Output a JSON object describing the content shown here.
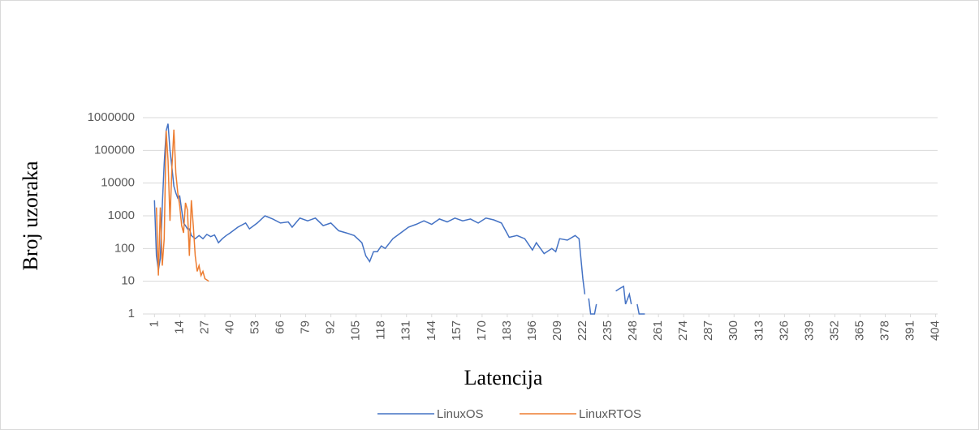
{
  "chart_data": {
    "type": "line",
    "y_label": "Broj uzoraka",
    "x_label": "Latencija",
    "log_y": true,
    "grid": true,
    "legend": "bottom",
    "xlim": [
      -5,
      405
    ],
    "ylim": [
      1,
      1000000
    ],
    "xticks": [
      1,
      14,
      27,
      40,
      53,
      66,
      79,
      92,
      105,
      118,
      131,
      144,
      157,
      170,
      183,
      196,
      209,
      222,
      235,
      248,
      261,
      274,
      287,
      300,
      313,
      326,
      339,
      352,
      365,
      378,
      391,
      404
    ],
    "yticks": [
      1,
      10,
      100,
      1000,
      10000,
      100000,
      1000000
    ],
    "series": [
      {
        "name": "LinuxOS",
        "color": "#4472c4",
        "x": [
          1,
          2,
          3,
          4,
          5,
          6,
          7,
          8,
          9,
          10,
          11,
          12,
          13,
          14,
          15,
          16,
          17,
          18,
          19,
          20,
          22,
          24,
          26,
          28,
          30,
          32,
          34,
          36,
          38,
          40,
          44,
          48,
          50,
          54,
          58,
          62,
          66,
          70,
          72,
          76,
          80,
          84,
          88,
          92,
          96,
          100,
          104,
          108,
          110,
          112,
          114,
          116,
          118,
          120,
          124,
          128,
          132,
          136,
          140,
          144,
          148,
          152,
          156,
          160,
          164,
          168,
          172,
          176,
          180,
          184,
          188,
          192,
          196,
          198,
          202,
          206,
          208,
          210,
          214,
          218,
          220,
          222,
          223,
          224,
          225,
          226,
          227,
          228,
          229,
          230,
          239,
          241,
          243,
          244,
          246,
          247,
          248,
          250,
          251,
          254
        ],
        "values": [
          3000,
          60,
          22,
          50,
          2000,
          40000,
          400000,
          650000,
          100000,
          30000,
          8000,
          5000,
          3500,
          4000,
          1500,
          600,
          500,
          400,
          400,
          250,
          200,
          250,
          200,
          270,
          230,
          260,
          150,
          200,
          250,
          300,
          450,
          600,
          400,
          600,
          1000,
          800,
          600,
          650,
          450,
          850,
          700,
          850,
          500,
          600,
          350,
          300,
          250,
          150,
          60,
          40,
          80,
          80,
          120,
          100,
          200,
          300,
          450,
          550,
          700,
          550,
          800,
          650,
          850,
          700,
          800,
          600,
          850,
          750,
          600,
          220,
          250,
          200,
          90,
          150,
          70,
          100,
          80,
          200,
          180,
          250,
          200,
          12,
          4,
          null,
          3,
          1,
          1,
          1,
          2,
          null,
          5,
          6,
          7,
          2,
          4,
          2,
          null,
          2,
          1,
          1
        ]
      },
      {
        "name": "LinuxRTOS",
        "color": "#ed7d31",
        "x": [
          2,
          3,
          4,
          5,
          6,
          7,
          8,
          9,
          10,
          11,
          12,
          13,
          14,
          15,
          16,
          17,
          18,
          19,
          20,
          21,
          22,
          23,
          24,
          25,
          26,
          27,
          28,
          29
        ],
        "values": [
          1800,
          15,
          1800,
          30,
          200,
          400000,
          50000,
          700,
          30000,
          430000,
          20000,
          5000,
          2000,
          500,
          300,
          2500,
          1500,
          60,
          3000,
          500,
          60,
          20,
          30,
          15,
          20,
          12,
          11,
          10
        ]
      }
    ]
  }
}
